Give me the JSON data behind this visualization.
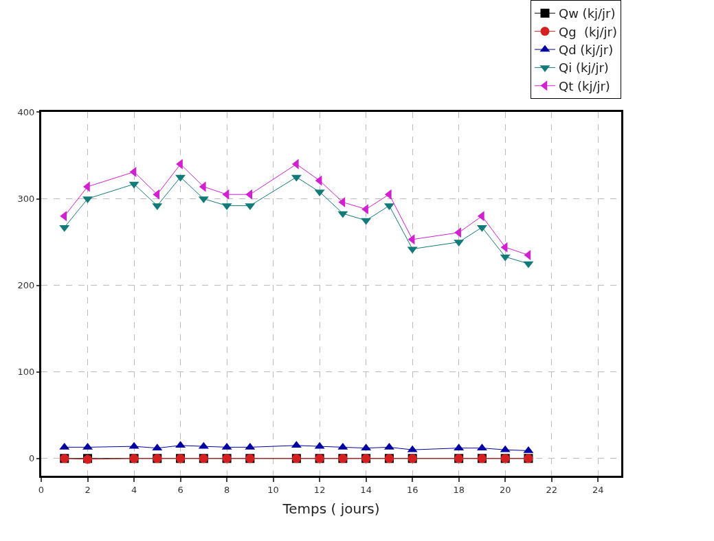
{
  "chart_data": {
    "type": "line",
    "xlabel": "Temps ( jours)",
    "x": [
      1,
      2,
      4,
      5,
      6,
      7,
      8,
      9,
      11,
      12,
      13,
      14,
      15,
      16,
      18,
      19,
      20,
      21
    ],
    "series": [
      {
        "name": "Qw (kj/jr)",
        "color": "#000000",
        "marker": "square",
        "values": [
          0,
          0,
          0,
          0,
          0,
          0,
          0,
          0,
          0,
          0,
          0,
          0,
          0,
          0,
          0,
          0,
          0,
          0
        ]
      },
      {
        "name": "Qg  (kj/jr)",
        "color": "#d42020",
        "marker": "circle",
        "values": [
          0,
          -1,
          0,
          0,
          0,
          0,
          0,
          0,
          0,
          0,
          0,
          0,
          0,
          0,
          0,
          0,
          0,
          0
        ]
      },
      {
        "name": "Qd (kj/jr)",
        "color": "#0000a0",
        "marker": "triangle",
        "values": [
          13,
          13,
          14,
          12,
          15,
          14,
          13,
          13,
          15,
          14,
          13,
          12,
          13,
          10,
          12,
          12,
          10,
          9
        ]
      },
      {
        "name": "Qi (kj/jr)",
        "color": "#127a78",
        "marker": "triangle-down",
        "values": [
          267,
          300,
          317,
          292,
          325,
          300,
          292,
          292,
          325,
          308,
          283,
          275,
          292,
          242,
          250,
          267,
          233,
          225
        ]
      },
      {
        "name": "Qt (kj/jr)",
        "color": "#d020d0",
        "marker": "triangle-left",
        "values": [
          280,
          314,
          331,
          305,
          340,
          314,
          305,
          305,
          340,
          321,
          296,
          288,
          305,
          253,
          261,
          280,
          244,
          235
        ]
      }
    ],
    "xlim": [
      0,
      25
    ],
    "xticks": [
      0,
      2,
      4,
      6,
      8,
      10,
      12,
      14,
      16,
      18,
      20,
      22,
      24
    ],
    "ylim": [
      -20,
      400
    ],
    "yticks": [
      0,
      100,
      200,
      300,
      400
    ],
    "grid": true,
    "legend": "top right"
  }
}
